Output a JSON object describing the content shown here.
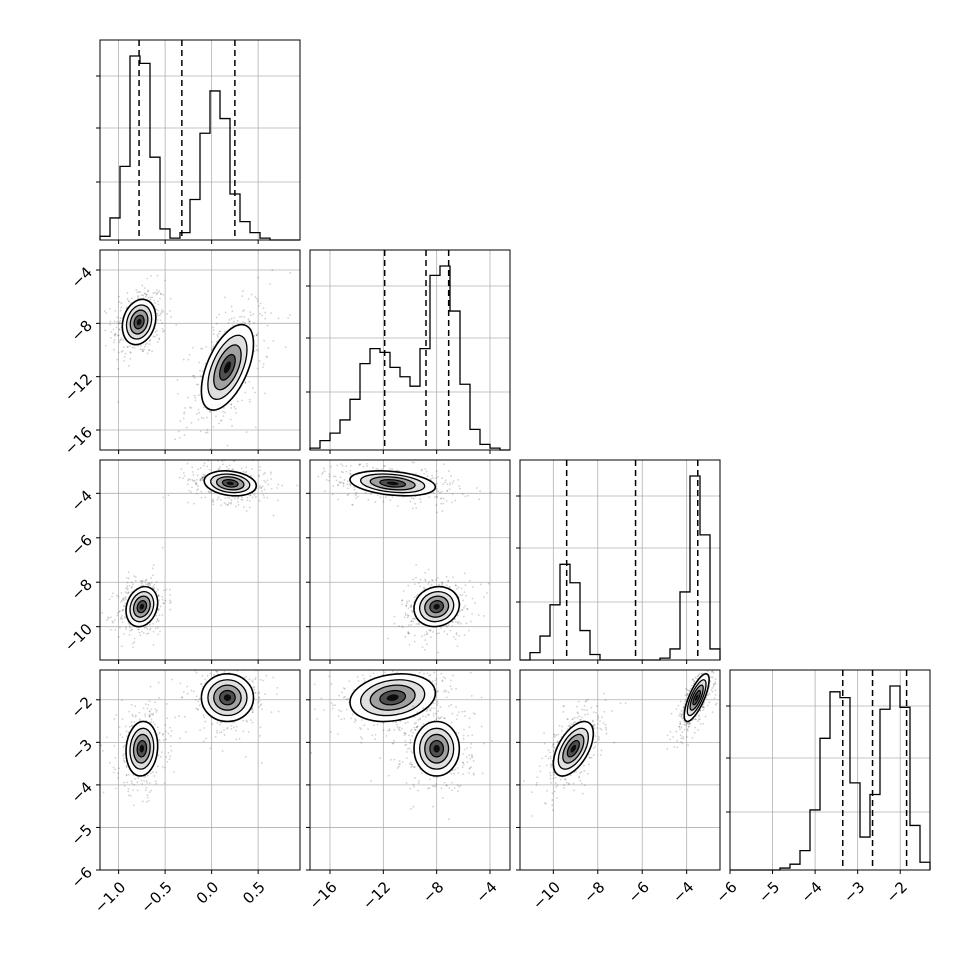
{
  "chart_data": {
    "type": "corner",
    "parameters": 4,
    "axis_ranges": [
      [
        -1.2,
        0.95
      ],
      [
        -17.5,
        -2.5
      ],
      [
        -11.5,
        -2.5
      ],
      [
        -6.0,
        -1.3
      ]
    ],
    "tick_values": [
      [
        -1.0,
        -0.5,
        0.0,
        0.5
      ],
      [
        -16,
        -12,
        -8,
        -4
      ],
      [
        -10,
        -8,
        -6,
        -4
      ],
      [
        -6,
        -5,
        -4,
        -3,
        -2
      ]
    ],
    "tick_labels": [
      [
        "−1.0",
        "−0.5",
        "0.0",
        "0.5"
      ],
      [
        "−16",
        "−12",
        "−8",
        "−4"
      ],
      [
        "−10",
        "−8",
        "−6",
        "−4"
      ],
      [
        "−6",
        "−5",
        "−4",
        "−3",
        "−2"
      ]
    ],
    "quantiles": [
      [
        -0.78,
        -0.32,
        0.25
      ],
      [
        -11.9,
        -8.8,
        -7.1
      ],
      [
        -9.4,
        -6.3,
        -3.5
      ],
      [
        -3.35,
        -2.65,
        -1.85
      ]
    ],
    "modes": [
      [
        {
          "mean": -0.75,
          "sd": 0.085,
          "w": 0.5
        },
        {
          "mean": 0.17,
          "sd": 0.14,
          "w": 0.5
        }
      ],
      [
        {
          "mean": -7.9,
          "sd": 0.85,
          "w": 0.5
        },
        {
          "mean": -11.3,
          "sd": 1.6,
          "w": 0.5
        }
      ],
      [
        {
          "mean": -9.1,
          "sd": 0.45,
          "w": 0.5
        },
        {
          "mean": -3.55,
          "sd": 0.28,
          "w": 0.5
        }
      ],
      [
        {
          "mean": -3.15,
          "sd": 0.32,
          "w": 0.5
        },
        {
          "mean": -1.95,
          "sd": 0.28,
          "w": 0.5
        }
      ]
    ],
    "histograms": [
      {
        "edges_range": [
          -1.2,
          0.95
        ],
        "bins": 20,
        "counts": [
          2,
          12,
          40,
          100,
          96,
          45,
          6,
          1,
          4,
          22,
          58,
          81,
          66,
          25,
          10,
          4,
          1,
          0,
          0,
          0
        ]
      },
      {
        "edges_range": [
          -17.5,
          -2.5
        ],
        "bins": 20,
        "counts": [
          1,
          5,
          9,
          16,
          27,
          46,
          54,
          52,
          44,
          39,
          34,
          54,
          93,
          98,
          74,
          35,
          11,
          3,
          1,
          0
        ]
      },
      {
        "edges_range": [
          -11.5,
          -2.5
        ],
        "bins": 20,
        "counts": [
          0,
          4,
          13,
          30,
          52,
          42,
          16,
          3,
          0,
          0,
          0,
          0,
          0,
          0,
          1,
          6,
          37,
          100,
          68,
          6
        ]
      },
      {
        "edges_range": [
          -6.0,
          -1.3
        ],
        "bins": 20,
        "counts": [
          0,
          0,
          0,
          0,
          0,
          1,
          3,
          10,
          31,
          68,
          92,
          89,
          45,
          17,
          39,
          83,
          95,
          84,
          23,
          4
        ]
      }
    ],
    "pairs": [
      {
        "row": 1,
        "col": 0,
        "clusters": [
          {
            "cx": -0.78,
            "cy": -7.9,
            "sx": 0.09,
            "sy": 0.85,
            "rho": 0.2
          },
          {
            "cx": 0.17,
            "cy": -11.3,
            "sx": 0.14,
            "sy": 1.6,
            "rho": 0.55
          }
        ]
      },
      {
        "row": 2,
        "col": 0,
        "clusters": [
          {
            "cx": -0.75,
            "cy": -9.1,
            "sx": 0.085,
            "sy": 0.45,
            "rho": 0.2
          },
          {
            "cx": 0.2,
            "cy": -3.55,
            "sx": 0.14,
            "sy": 0.28,
            "rho": -0.2
          }
        ]
      },
      {
        "row": 2,
        "col": 1,
        "clusters": [
          {
            "cx": -11.3,
            "cy": -3.55,
            "sx": 1.6,
            "sy": 0.28,
            "rho": -0.3
          },
          {
            "cx": -8.0,
            "cy": -9.1,
            "sx": 0.85,
            "sy": 0.45,
            "rho": 0.1
          }
        ]
      },
      {
        "row": 3,
        "col": 0,
        "clusters": [
          {
            "cx": -0.75,
            "cy": -3.15,
            "sx": 0.085,
            "sy": 0.32,
            "rho": 0.1
          },
          {
            "cx": 0.17,
            "cy": -1.95,
            "sx": 0.14,
            "sy": 0.28,
            "rho": 0.0
          }
        ]
      },
      {
        "row": 3,
        "col": 1,
        "clusters": [
          {
            "cx": -11.3,
            "cy": -1.95,
            "sx": 1.6,
            "sy": 0.28,
            "rho": 0.2
          },
          {
            "cx": -8.0,
            "cy": -3.15,
            "sx": 0.85,
            "sy": 0.32,
            "rho": 0.0
          }
        ]
      },
      {
        "row": 3,
        "col": 2,
        "clusters": [
          {
            "cx": -9.1,
            "cy": -3.15,
            "sx": 0.45,
            "sy": 0.32,
            "rho": 0.55
          },
          {
            "cx": -3.55,
            "cy": -1.95,
            "sx": 0.28,
            "sy": 0.28,
            "rho": 0.75
          }
        ]
      }
    ],
    "colors": {
      "scatter": "#000000",
      "contour": "#000000",
      "fill": "#000000",
      "grid": "#b0b0b0"
    },
    "grid": true,
    "legend": "none"
  }
}
